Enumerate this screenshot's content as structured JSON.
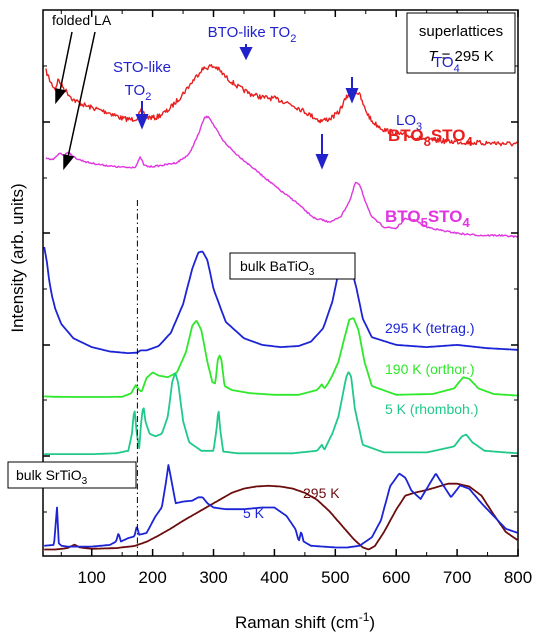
{
  "chart_data": {
    "type": "line",
    "title": "",
    "xlabel": "Raman shift (cm",
    "xlabel_sup": "-1",
    "xlabel_tail": ")",
    "ylabel": "Intensity (arb. units)",
    "xlim": [
      20,
      800
    ],
    "xticks": [
      100,
      200,
      300,
      400,
      500,
      600,
      700,
      800
    ],
    "xtick_labels": [
      "100",
      "200",
      "300",
      "400",
      "500",
      "600",
      "700",
      "800"
    ],
    "yticks_drawn": "unlabeled",
    "legend_box": {
      "line1": "superlattices",
      "line2_italic": "T",
      "line2_rest": " = 295 K",
      "placement": "top-right"
    },
    "annotations": {
      "folded_la": "folded LA",
      "sto_like_a": "STO-like",
      "sto_like_b": "TO",
      "sto_like_sub": "2",
      "bto_like_a": "BTO-like TO",
      "bto_like_sub": "2",
      "lo3": "LO",
      "lo3_sub": "3",
      "to4": "TO",
      "to4_sub": "4",
      "bto8_a": "BTO",
      "bto8_s1": "8",
      "bto8_b": "STO",
      "bto8_s2": "4",
      "bto5_a": "BTO",
      "bto5_s1": "5",
      "bto5_b": "STO",
      "bto5_s2": "4",
      "bulk_bto_a": "bulk BaTiO",
      "bulk_bto_sub": "3",
      "bulk_sto_a": "bulk SrTiO",
      "bulk_sto_sub": "3",
      "t295_tetrag": "295 K (tetrag.)",
      "t190_orthor": "190 K (orthor.)",
      "t5_rhombo": "5 K (rhomboh.)",
      "sto_295": "295 K",
      "sto_5": "5 K"
    },
    "colors": {
      "red": "#e8201f",
      "magenta": "#e135e0",
      "blue": "#1c24d6",
      "green": "#2ee82a",
      "teal": "#20c98a",
      "brown": "#6b0d0d",
      "annot_blue": "#2222cc"
    },
    "dashdot_line_x": 175,
    "series": [
      {
        "name": "BTO8STO4",
        "color": "#e8201f",
        "noise": 2.5,
        "x": [
          25,
          32,
          40,
          45,
          55,
          70,
          90,
          110,
          130,
          150,
          165,
          175,
          182,
          190,
          205,
          225,
          245,
          265,
          280,
          295,
          305,
          320,
          340,
          360,
          380,
          400,
          420,
          440,
          460,
          475,
          490,
          505,
          515,
          525,
          532,
          540,
          548,
          560,
          580,
          600,
          620,
          640,
          660,
          680,
          700,
          720,
          740,
          760,
          780,
          800
        ],
        "y": [
          0.95,
          0.86,
          0.8,
          0.88,
          0.8,
          0.71,
          0.66,
          0.63,
          0.6,
          0.555,
          0.545,
          0.56,
          0.625,
          0.565,
          0.56,
          0.62,
          0.73,
          0.86,
          0.96,
          0.99,
          0.98,
          0.9,
          0.82,
          0.76,
          0.73,
          0.72,
          0.69,
          0.64,
          0.58,
          0.535,
          0.55,
          0.6,
          0.7,
          0.78,
          0.79,
          0.75,
          0.64,
          0.53,
          0.46,
          0.43,
          0.41,
          0.39,
          0.375,
          0.365,
          0.36,
          0.355,
          0.35,
          0.35,
          0.345,
          0.34
        ]
      },
      {
        "name": "BTO5STO4",
        "color": "#e135e0",
        "noise": 0.8,
        "x": [
          25,
          35,
          42,
          48,
          55,
          62,
          70,
          80,
          95,
          115,
          140,
          160,
          172,
          180,
          186,
          195,
          215,
          240,
          260,
          275,
          285,
          292,
          300,
          315,
          335,
          360,
          385,
          410,
          435,
          455,
          470,
          478,
          484,
          495,
          510,
          525,
          533,
          540,
          548,
          560,
          580,
          600,
          615,
          630,
          650,
          680,
          710,
          740,
          770,
          800
        ],
        "y": [
          0.69,
          0.68,
          0.7,
          0.73,
          0.71,
          0.74,
          0.7,
          0.68,
          0.66,
          0.645,
          0.63,
          0.625,
          0.63,
          0.7,
          0.64,
          0.63,
          0.64,
          0.66,
          0.72,
          0.86,
          0.98,
          0.99,
          0.93,
          0.82,
          0.73,
          0.64,
          0.55,
          0.46,
          0.38,
          0.3,
          0.25,
          0.255,
          0.24,
          0.24,
          0.28,
          0.4,
          0.52,
          0.5,
          0.4,
          0.27,
          0.2,
          0.19,
          0.26,
          0.25,
          0.2,
          0.17,
          0.15,
          0.14,
          0.14,
          0.13
        ]
      },
      {
        "name": "bulk BaTiO3 295 K (tetrag.)",
        "color": "#1c24d6",
        "noise": 0,
        "x": [
          22,
          26,
          30,
          35,
          40,
          50,
          70,
          100,
          130,
          160,
          175,
          180,
          190,
          210,
          230,
          250,
          265,
          275,
          282,
          290,
          300,
          320,
          350,
          380,
          410,
          440,
          460,
          480,
          495,
          505,
          512,
          518,
          525,
          535,
          545,
          560,
          600,
          650,
          700,
          750,
          800
        ],
        "y": [
          1.0,
          0.88,
          0.7,
          0.55,
          0.44,
          0.3,
          0.17,
          0.09,
          0.05,
          0.035,
          0.04,
          0.06,
          0.06,
          0.1,
          0.22,
          0.48,
          0.8,
          0.95,
          0.96,
          0.88,
          0.62,
          0.32,
          0.17,
          0.11,
          0.09,
          0.1,
          0.14,
          0.26,
          0.5,
          0.76,
          0.86,
          0.88,
          0.83,
          0.62,
          0.35,
          0.18,
          0.11,
          0.09,
          0.11,
          0.08,
          0.065
        ]
      },
      {
        "name": "bulk BaTiO3 190 K (orthor.)",
        "color": "#2ee82a",
        "noise": 0,
        "x": [
          22,
          40,
          80,
          120,
          150,
          165,
          172,
          178,
          182,
          190,
          200,
          210,
          225,
          240,
          255,
          265,
          272,
          280,
          290,
          298,
          303,
          307,
          310,
          313,
          318,
          330,
          360,
          400,
          440,
          470,
          478,
          482,
          488,
          495,
          505,
          515,
          523,
          530,
          538,
          548,
          560,
          600,
          660,
          695,
          710,
          720,
          735,
          760,
          800
        ],
        "y": [
          0.02,
          0.015,
          0.012,
          0.012,
          0.015,
          0.06,
          0.16,
          0.1,
          0.08,
          0.25,
          0.32,
          0.28,
          0.26,
          0.32,
          0.58,
          0.9,
          0.97,
          0.85,
          0.45,
          0.2,
          0.18,
          0.48,
          0.53,
          0.48,
          0.15,
          0.1,
          0.06,
          0.04,
          0.04,
          0.1,
          0.17,
          0.12,
          0.18,
          0.28,
          0.45,
          0.75,
          0.98,
          1.0,
          0.85,
          0.45,
          0.15,
          0.04,
          0.05,
          0.12,
          0.26,
          0.24,
          0.12,
          0.05,
          0.03
        ]
      },
      {
        "name": "bulk BaTiO3 5 K (rhomboh.)",
        "color": "#20c98a",
        "noise": 0,
        "x": [
          22,
          60,
          100,
          140,
          160,
          166,
          170,
          174,
          178,
          182,
          185,
          188,
          195,
          205,
          215,
          225,
          232,
          237,
          242,
          250,
          260,
          280,
          300,
          305,
          308,
          311,
          316,
          340,
          380,
          430,
          470,
          478,
          482,
          486,
          495,
          505,
          512,
          518,
          522,
          526,
          532,
          545,
          580,
          650,
          695,
          708,
          715,
          725,
          745,
          780,
          800
        ],
        "y": [
          0.01,
          0.01,
          0.01,
          0.02,
          0.05,
          0.25,
          0.55,
          0.25,
          0.08,
          0.45,
          0.58,
          0.4,
          0.25,
          0.22,
          0.25,
          0.45,
          0.85,
          0.97,
          0.85,
          0.4,
          0.15,
          0.05,
          0.05,
          0.3,
          0.55,
          0.3,
          0.04,
          0.02,
          0.02,
          0.02,
          0.05,
          0.12,
          0.06,
          0.12,
          0.25,
          0.45,
          0.7,
          0.92,
          0.98,
          0.92,
          0.55,
          0.12,
          0.03,
          0.03,
          0.1,
          0.22,
          0.24,
          0.15,
          0.05,
          0.03,
          0.02
        ]
      },
      {
        "name": "bulk SrTiO3 295 K",
        "color": "#6b0d0d",
        "noise": 0,
        "x": [
          22,
          40,
          60,
          72,
          80,
          100,
          140,
          170,
          190,
          210,
          230,
          250,
          270,
          290,
          310,
          330,
          350,
          370,
          390,
          410,
          430,
          450,
          470,
          490,
          510,
          530,
          545,
          555,
          565,
          580,
          600,
          615,
          630,
          650,
          670,
          685,
          700,
          720,
          740,
          760,
          780,
          800
        ],
        "y": [
          0.05,
          0.05,
          0.07,
          0.12,
          0.08,
          0.06,
          0.07,
          0.1,
          0.16,
          0.25,
          0.35,
          0.46,
          0.56,
          0.66,
          0.76,
          0.86,
          0.92,
          0.95,
          0.96,
          0.95,
          0.92,
          0.86,
          0.76,
          0.6,
          0.4,
          0.2,
          0.08,
          0.05,
          0.1,
          0.3,
          0.62,
          0.82,
          0.86,
          0.9,
          0.95,
          0.99,
          0.99,
          0.95,
          0.82,
          0.55,
          0.3,
          0.18
        ]
      },
      {
        "name": "bulk SrTiO3 5 K",
        "color": "#1c24d6",
        "noise": 0,
        "x": [
          22,
          38,
          43,
          46,
          50,
          60,
          80,
          100,
          130,
          140,
          144,
          148,
          160,
          170,
          174,
          178,
          190,
          205,
          215,
          222,
          226,
          230,
          238,
          250,
          265,
          275,
          282,
          290,
          300,
          320,
          350,
          380,
          400,
          420,
          435,
          440,
          444,
          448,
          460,
          480,
          500,
          520,
          540,
          560,
          575,
          590,
          605,
          615,
          625,
          640,
          655,
          665,
          672,
          690,
          705,
          720,
          740,
          760,
          780,
          800
        ],
        "y": [
          0.05,
          0.06,
          0.5,
          0.08,
          0.05,
          0.04,
          0.04,
          0.04,
          0.06,
          0.1,
          0.2,
          0.1,
          0.14,
          0.16,
          0.28,
          0.18,
          0.2,
          0.4,
          0.5,
          0.8,
          1.0,
          0.85,
          0.55,
          0.57,
          0.58,
          0.62,
          0.62,
          0.55,
          0.5,
          0.48,
          0.48,
          0.5,
          0.5,
          0.4,
          0.24,
          0.1,
          0.22,
          0.1,
          0.05,
          0.04,
          0.03,
          0.03,
          0.05,
          0.15,
          0.35,
          0.75,
          0.9,
          0.85,
          0.7,
          0.6,
          0.78,
          0.9,
          0.82,
          0.62,
          0.76,
          0.72,
          0.55,
          0.4,
          0.25,
          0.2
        ]
      }
    ]
  }
}
